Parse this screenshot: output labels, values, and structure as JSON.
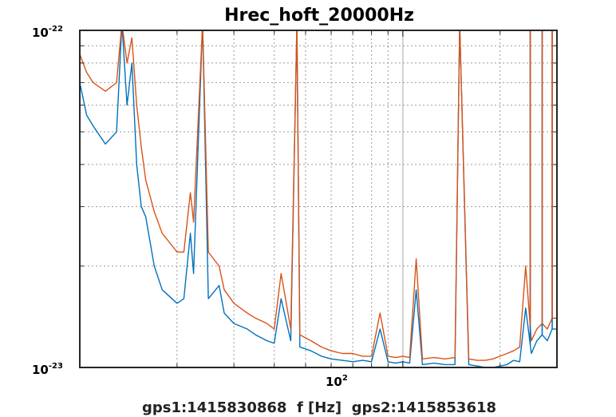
{
  "chart_data": {
    "type": "line",
    "title": "Hrec_hoft_20000Hz",
    "xlabel": "gps1:1415830868  f [Hz]  gps2:1415853618",
    "ylabel": "",
    "x_scale": "log",
    "y_scale": "log",
    "xlim": [
      10,
      300
    ],
    "ylim": [
      1e-23,
      1e-22
    ],
    "x_tick_labels": [
      {
        "base": "10",
        "exp": "2",
        "value": 100
      }
    ],
    "y_tick_labels": [
      {
        "base": "10",
        "exp": "-22",
        "value": 1e-22
      },
      {
        "base": "10",
        "exp": "-23",
        "value": 1e-23
      }
    ],
    "grid": true,
    "legend": "none",
    "series": [
      {
        "color": "#0072bd",
        "points": [
          [
            10,
            7e-23
          ],
          [
            10.5,
            5.6e-23
          ],
          [
            11,
            5.2e-23
          ],
          [
            12,
            4.6e-23
          ],
          [
            13,
            5e-23
          ],
          [
            13.5,
            1.05e-22
          ],
          [
            14,
            6e-23
          ],
          [
            14.5,
            8e-23
          ],
          [
            15,
            4e-23
          ],
          [
            15.5,
            3e-23
          ],
          [
            16,
            2.8e-23
          ],
          [
            17,
            2e-23
          ],
          [
            18,
            1.7e-23
          ],
          [
            20,
            1.55e-23
          ],
          [
            21,
            1.6e-23
          ],
          [
            22,
            2.5e-23
          ],
          [
            22.5,
            1.9e-23
          ],
          [
            24,
            1.05e-22
          ],
          [
            25,
            1.6e-23
          ],
          [
            27,
            1.75e-23
          ],
          [
            28,
            1.45e-23
          ],
          [
            30,
            1.35e-23
          ],
          [
            33,
            1.3e-23
          ],
          [
            35,
            1.25e-23
          ],
          [
            38,
            1.2e-23
          ],
          [
            40,
            1.18e-23
          ],
          [
            42,
            1.6e-23
          ],
          [
            45,
            1.2e-23
          ],
          [
            47,
            1.05e-22
          ],
          [
            48,
            1.15e-23
          ],
          [
            52,
            1.12e-23
          ],
          [
            56,
            1.08e-23
          ],
          [
            60,
            1.06e-23
          ],
          [
            65,
            1.05e-23
          ],
          [
            70,
            1.04e-23
          ],
          [
            75,
            1.05e-23
          ],
          [
            80,
            1.04e-23
          ],
          [
            85,
            1.3e-23
          ],
          [
            90,
            1.04e-23
          ],
          [
            95,
            1.03e-23
          ],
          [
            100,
            1.04e-23
          ],
          [
            105,
            1.03e-23
          ],
          [
            110,
            1.7e-23
          ],
          [
            115,
            1.02e-23
          ],
          [
            125,
            1.03e-23
          ],
          [
            135,
            1.02e-23
          ],
          [
            145,
            1.02e-23
          ],
          [
            150,
            1.05e-22
          ],
          [
            160,
            1.02e-23
          ],
          [
            170,
            1.01e-23
          ],
          [
            180,
            1e-23
          ],
          [
            190,
            1e-23
          ],
          [
            200,
            1.01e-23
          ],
          [
            210,
            1.02e-23
          ],
          [
            220,
            1.05e-23
          ],
          [
            230,
            1.04e-23
          ],
          [
            240,
            1.5e-23
          ],
          [
            250,
            1.1e-23
          ],
          [
            260,
            1.2e-23
          ],
          [
            270,
            1.25e-23
          ],
          [
            280,
            1.2e-23
          ],
          [
            290,
            1.3e-23
          ],
          [
            300,
            1.3e-23
          ]
        ]
      },
      {
        "color": "#d95319",
        "points": [
          [
            10,
            8.5e-23
          ],
          [
            10.5,
            7.5e-23
          ],
          [
            11,
            7e-23
          ],
          [
            12,
            6.6e-23
          ],
          [
            13,
            7e-23
          ],
          [
            13.5,
            1.05e-22
          ],
          [
            14,
            8e-23
          ],
          [
            14.5,
            9.5e-23
          ],
          [
            15,
            6e-23
          ],
          [
            15.5,
            4.5e-23
          ],
          [
            16,
            3.6e-23
          ],
          [
            17,
            2.9e-23
          ],
          [
            18,
            2.5e-23
          ],
          [
            20,
            2.2e-23
          ],
          [
            21,
            2.2e-23
          ],
          [
            22,
            3.3e-23
          ],
          [
            22.5,
            2.7e-23
          ],
          [
            24,
            1.05e-22
          ],
          [
            25,
            2.2e-23
          ],
          [
            27,
            2e-23
          ],
          [
            28,
            1.7e-23
          ],
          [
            30,
            1.55e-23
          ],
          [
            33,
            1.45e-23
          ],
          [
            35,
            1.4e-23
          ],
          [
            38,
            1.35e-23
          ],
          [
            40,
            1.3e-23
          ],
          [
            42,
            1.9e-23
          ],
          [
            45,
            1.3e-23
          ],
          [
            47,
            1.05e-22
          ],
          [
            48,
            1.25e-23
          ],
          [
            52,
            1.2e-23
          ],
          [
            56,
            1.15e-23
          ],
          [
            60,
            1.12e-23
          ],
          [
            65,
            1.1e-23
          ],
          [
            70,
            1.1e-23
          ],
          [
            75,
            1.08e-23
          ],
          [
            80,
            1.08e-23
          ],
          [
            85,
            1.45e-23
          ],
          [
            90,
            1.08e-23
          ],
          [
            95,
            1.07e-23
          ],
          [
            100,
            1.08e-23
          ],
          [
            105,
            1.07e-23
          ],
          [
            110,
            2.1e-23
          ],
          [
            115,
            1.06e-23
          ],
          [
            125,
            1.07e-23
          ],
          [
            135,
            1.06e-23
          ],
          [
            145,
            1.07e-23
          ],
          [
            150,
            1.05e-22
          ],
          [
            160,
            1.06e-23
          ],
          [
            170,
            1.05e-23
          ],
          [
            180,
            1.05e-23
          ],
          [
            190,
            1.06e-23
          ],
          [
            200,
            1.08e-23
          ],
          [
            210,
            1.1e-23
          ],
          [
            220,
            1.12e-23
          ],
          [
            230,
            1.15e-23
          ],
          [
            240,
            2e-23
          ],
          [
            250,
            1.2e-23
          ],
          [
            260,
            1.3e-23
          ],
          [
            270,
            1.35e-23
          ],
          [
            280,
            1.3e-23
          ],
          [
            290,
            1.4e-23
          ],
          [
            300,
            1.4e-23
          ]
        ]
      }
    ],
    "spikes": [
      {
        "x": 24.0,
        "top": 1.05e-22
      },
      {
        "x": 47.0,
        "top": 1.05e-22
      },
      {
        "x": 150.0,
        "top": 1.05e-22
      },
      {
        "x": 248.0,
        "top": 1.05e-22
      },
      {
        "x": 270.0,
        "top": 1.05e-22
      },
      {
        "x": 290.0,
        "top": 1.05e-22
      },
      {
        "x": 300.0,
        "top": 1.05e-22
      }
    ]
  }
}
